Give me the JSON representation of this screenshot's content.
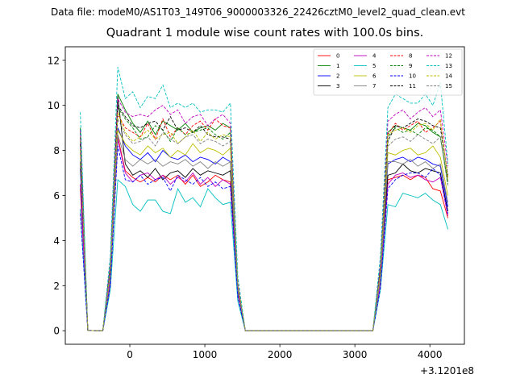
{
  "figure": {
    "suptitle": "Data file: modeM0/AS1T03_149T06_9000003326_22426cztM0_level2_quad_clean.evt",
    "offset_text": "+3.1201e8"
  },
  "chart_data": {
    "type": "line",
    "title": "Quadrant 1 module wise count rates with 100.0s bins.",
    "xlabel": "",
    "ylabel": "",
    "x_offset": 312010000,
    "xlim": [
      -860,
      4460
    ],
    "ylim": [
      -0.6,
      12.6
    ],
    "xticks": [
      0,
      1000,
      2000,
      3000,
      4000
    ],
    "yticks": [
      0,
      2,
      4,
      6,
      8,
      10,
      12
    ],
    "legend_position": "upper-right",
    "legend_columns": 4,
    "x": [
      -660,
      -560,
      -460,
      -360,
      -260,
      -160,
      -60,
      40,
      140,
      240,
      340,
      440,
      540,
      640,
      740,
      840,
      940,
      1040,
      1140,
      1240,
      1340,
      1440,
      1540,
      3240,
      3340,
      3440,
      3540,
      3640,
      3740,
      3840,
      3940,
      4040,
      4140,
      4240
    ],
    "series": [
      {
        "name": "0",
        "color": "#ff0000",
        "dashed": false,
        "values": [
          6.3,
          0.02,
          0,
          0,
          2.1,
          8.6,
          7.1,
          6.8,
          6.6,
          6.8,
          6.6,
          6.9,
          6.7,
          6.9,
          6.5,
          6.9,
          6.4,
          6.6,
          6.9,
          6.7,
          6.6,
          1.6,
          0,
          0,
          2.1,
          6.7,
          6.8,
          6.9,
          6.7,
          6.9,
          6.8,
          6.3,
          6.2,
          5.0
        ]
      },
      {
        "name": "1",
        "color": "#008000",
        "dashed": false,
        "values": [
          9.0,
          0.02,
          0,
          0,
          2.9,
          10.5,
          9.8,
          9.2,
          8.8,
          9.3,
          8.7,
          9.3,
          9.1,
          8.9,
          9.2,
          8.8,
          9.0,
          9.1,
          8.9,
          9.2,
          9.0,
          2.0,
          0,
          0,
          2.8,
          8.8,
          9.1,
          9.0,
          8.9,
          9.2,
          9.1,
          8.8,
          8.6,
          6.6
        ]
      },
      {
        "name": "2",
        "color": "#0000ff",
        "dashed": false,
        "values": [
          7.2,
          0.02,
          0,
          0,
          2.3,
          9.0,
          8.2,
          7.8,
          7.6,
          7.9,
          7.5,
          8.0,
          7.7,
          7.6,
          7.8,
          7.5,
          7.7,
          7.6,
          7.4,
          7.7,
          7.5,
          1.8,
          0,
          0,
          2.3,
          7.4,
          7.6,
          7.7,
          7.5,
          7.7,
          7.6,
          7.4,
          7.3,
          5.5
        ]
      },
      {
        "name": "3",
        "color": "#000000",
        "dashed": false,
        "values": [
          7.5,
          0.02,
          0,
          0,
          2.2,
          10.4,
          7.4,
          6.9,
          7.1,
          6.8,
          7.2,
          6.7,
          7.0,
          7.1,
          6.8,
          7.2,
          6.9,
          7.1,
          7.0,
          6.9,
          7.1,
          1.7,
          0,
          0,
          2.2,
          6.9,
          7.0,
          7.4,
          7.1,
          7.0,
          7.2,
          7.1,
          7.0,
          5.3
        ]
      },
      {
        "name": "4",
        "color": "#bf00bf",
        "dashed": false,
        "values": [
          6.5,
          0.02,
          0,
          0,
          2.2,
          8.5,
          7.0,
          6.6,
          6.9,
          7.0,
          6.7,
          6.9,
          6.5,
          6.8,
          6.6,
          7.0,
          6.5,
          6.8,
          6.4,
          6.7,
          6.5,
          1.6,
          0,
          0,
          2.1,
          6.5,
          6.9,
          7.0,
          6.8,
          6.9,
          6.7,
          6.6,
          6.8,
          5.1
        ]
      },
      {
        "name": "5",
        "color": "#00bfbf",
        "dashed": false,
        "values": [
          5.4,
          0.02,
          0,
          0,
          1.8,
          6.7,
          6.4,
          5.6,
          5.3,
          5.8,
          5.8,
          5.3,
          5.2,
          6.3,
          5.7,
          5.9,
          5.5,
          6.3,
          5.9,
          5.6,
          5.7,
          1.3,
          0,
          0,
          1.8,
          5.6,
          5.5,
          6.1,
          6.0,
          5.9,
          6.1,
          5.8,
          5.6,
          4.5
        ]
      },
      {
        "name": "6",
        "color": "#bfbf00",
        "dashed": false,
        "values": [
          8.5,
          0.02,
          0,
          0,
          2.5,
          8.9,
          8.3,
          8.0,
          7.8,
          8.2,
          7.9,
          8.1,
          7.7,
          8.0,
          7.8,
          8.3,
          7.9,
          8.1,
          8.0,
          7.8,
          8.1,
          1.9,
          0,
          0,
          2.6,
          7.9,
          7.8,
          8.0,
          8.1,
          7.8,
          7.9,
          8.2,
          7.7,
          6.0
        ]
      },
      {
        "name": "7",
        "color": "#808080",
        "dashed": false,
        "values": [
          7.9,
          0.02,
          0,
          0,
          2.4,
          8.7,
          7.6,
          7.3,
          7.6,
          7.4,
          7.6,
          7.3,
          7.5,
          7.4,
          7.6,
          7.3,
          7.5,
          7.2,
          7.5,
          7.3,
          7.5,
          1.8,
          0,
          0,
          2.3,
          7.5,
          7.5,
          7.4,
          7.6,
          7.3,
          7.5,
          7.2,
          7.4,
          5.7
        ]
      },
      {
        "name": "8",
        "color": "#ff0000",
        "dashed": true,
        "values": [
          8.6,
          0.02,
          0,
          0,
          2.8,
          9.6,
          9.0,
          8.8,
          8.6,
          9.2,
          8.5,
          9.4,
          8.6,
          9.0,
          8.7,
          9.1,
          9.3,
          8.9,
          9.4,
          9.1,
          9.0,
          2.1,
          0,
          0,
          2.9,
          8.7,
          9.2,
          8.9,
          9.1,
          9.3,
          8.8,
          9.0,
          9.3,
          6.8
        ]
      },
      {
        "name": "9",
        "color": "#008000",
        "dashed": true,
        "values": [
          8.8,
          0.02,
          0,
          0,
          2.9,
          9.9,
          9.4,
          9.0,
          8.5,
          8.6,
          9.1,
          8.9,
          8.4,
          9.0,
          8.7,
          8.8,
          8.9,
          9.0,
          8.7,
          8.5,
          8.8,
          2.0,
          0,
          0,
          2.9,
          8.6,
          9.0,
          8.8,
          8.9,
          8.7,
          9.0,
          8.9,
          8.6,
          6.5
        ]
      },
      {
        "name": "10",
        "color": "#0000ff",
        "dashed": true,
        "values": [
          5.2,
          0.02,
          0,
          0,
          2.0,
          8.2,
          6.7,
          6.6,
          6.9,
          6.5,
          6.7,
          6.8,
          6.2,
          6.9,
          6.7,
          6.5,
          6.8,
          6.4,
          6.6,
          6.3,
          6.4,
          1.5,
          0,
          0,
          1.9,
          6.3,
          6.7,
          6.9,
          7.0,
          7.0,
          6.8,
          7.2,
          6.9,
          5.2
        ]
      },
      {
        "name": "11",
        "color": "#000000",
        "dashed": true,
        "values": [
          8.3,
          0.02,
          0,
          0,
          2.7,
          10.0,
          9.5,
          9.1,
          9.0,
          9.2,
          9.3,
          8.9,
          9.5,
          8.9,
          9.0,
          8.8,
          9.1,
          8.7,
          8.6,
          8.6,
          8.5,
          2.0,
          0,
          0,
          2.8,
          8.4,
          9.1,
          9.0,
          9.2,
          9.4,
          9.3,
          9.1,
          9.0,
          6.9
        ]
      },
      {
        "name": "12",
        "color": "#bf00bf",
        "dashed": true,
        "values": [
          8.9,
          0.02,
          0,
          0,
          3.0,
          10.3,
          9.7,
          9.5,
          9.6,
          9.5,
          9.8,
          10.0,
          9.6,
          9.8,
          9.2,
          9.5,
          9.6,
          9.1,
          9.4,
          9.6,
          9.2,
          2.1,
          0,
          0,
          3.0,
          9.3,
          9.6,
          9.8,
          9.4,
          9.7,
          9.9,
          9.5,
          9.8,
          7.3
        ]
      },
      {
        "name": "13",
        "color": "#00bfbf",
        "dashed": true,
        "values": [
          9.7,
          0.02,
          0,
          0,
          3.3,
          11.7,
          10.3,
          10.6,
          9.9,
          10.4,
          10.3,
          10.9,
          9.9,
          10.1,
          9.9,
          10.1,
          9.7,
          9.8,
          9.8,
          9.7,
          10.1,
          2.4,
          0,
          0,
          3.3,
          9.9,
          10.5,
          10.3,
          10.1,
          10.1,
          10.5,
          10.0,
          11.0,
          7.4
        ]
      },
      {
        "name": "14",
        "color": "#bfbf00",
        "dashed": true,
        "values": [
          8.0,
          0.02,
          0,
          0,
          2.6,
          9.7,
          8.8,
          8.4,
          8.6,
          8.9,
          8.5,
          8.7,
          8.8,
          8.3,
          8.6,
          8.9,
          8.4,
          8.8,
          8.5,
          8.7,
          8.6,
          2.0,
          0,
          0,
          2.6,
          8.7,
          8.9,
          9.0,
          8.8,
          9.1,
          9.2,
          8.9,
          9.4,
          6.7
        ]
      },
      {
        "name": "15",
        "color": "#808080",
        "dashed": true,
        "values": [
          8.1,
          0.02,
          0,
          0,
          2.6,
          9.4,
          8.7,
          8.3,
          8.4,
          8.6,
          8.2,
          8.8,
          8.5,
          8.3,
          8.6,
          8.7,
          8.3,
          8.5,
          8.4,
          8.2,
          8.4,
          1.9,
          0,
          0,
          2.5,
          8.2,
          8.5,
          8.6,
          8.4,
          8.7,
          8.5,
          8.3,
          8.6,
          6.4
        ]
      }
    ]
  }
}
